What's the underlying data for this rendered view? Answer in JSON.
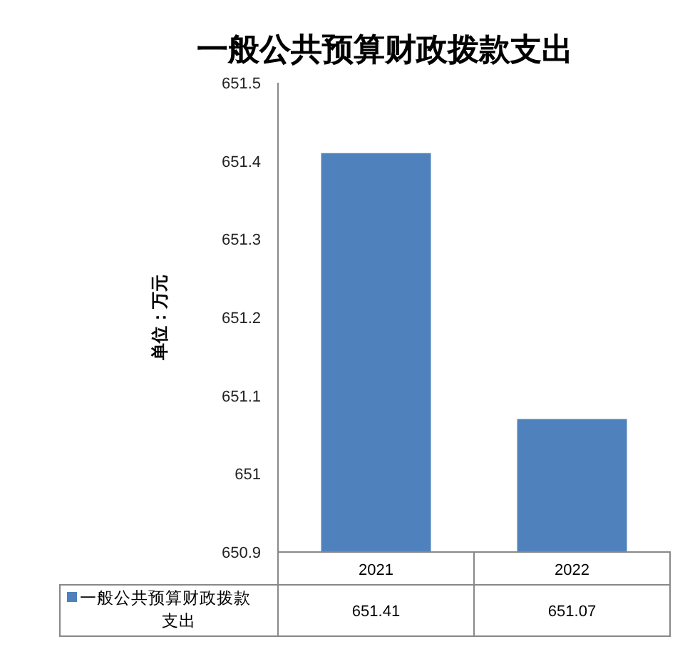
{
  "chart_data": {
    "type": "bar",
    "title": "一般公共预算财政拨款支出",
    "ylabel": "单位：万元",
    "categories": [
      "2021",
      "2022"
    ],
    "series": [
      {
        "name": "一般公共预算财政拨款支出",
        "color": "#4f81bd",
        "values": [
          651.41,
          651.07
        ]
      }
    ],
    "ylim": [
      650.9,
      651.5
    ],
    "yticks": [
      650.9,
      651,
      651.1,
      651.2,
      651.3,
      651.4,
      651.5
    ],
    "data_labels": true
  }
}
